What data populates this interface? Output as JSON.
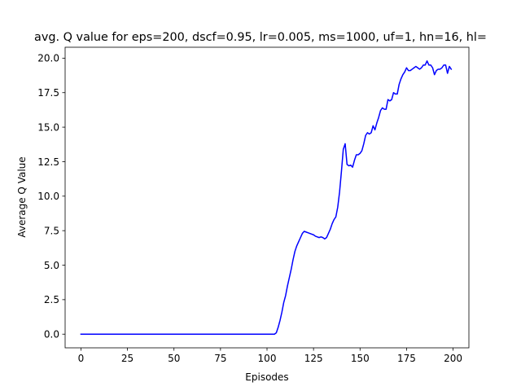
{
  "chart_data": {
    "type": "line",
    "title": "avg. Q value for eps=200, dscf=0.95, lr=0.005, ms=1000, uf=1, hn=16, hl=",
    "xlabel": "Episodes",
    "ylabel": "Average Q Value",
    "xlim": [
      -8.5,
      208.5
    ],
    "ylim": [
      -0.99,
      20.79
    ],
    "x_ticks": [
      0,
      25,
      50,
      75,
      100,
      125,
      150,
      175,
      200
    ],
    "x_tick_labels": [
      "0",
      "25",
      "50",
      "75",
      "100",
      "125",
      "150",
      "175",
      "200"
    ],
    "y_ticks": [
      0,
      2.5,
      5,
      7.5,
      10,
      12.5,
      15,
      17.5,
      20
    ],
    "y_tick_labels": [
      "0.0",
      "2.5",
      "5.0",
      "7.5",
      "10.0",
      "12.5",
      "15.0",
      "17.5",
      "20.0"
    ],
    "grid": false,
    "series": [
      {
        "color": "#0000ff",
        "x": [
          0,
          104,
          105,
          106,
          107,
          108,
          109,
          110,
          111,
          112,
          113,
          114,
          115,
          116,
          117,
          118,
          119,
          120,
          121,
          122,
          123,
          124,
          125,
          126,
          127,
          128,
          129,
          130,
          131,
          132,
          133,
          134,
          135,
          136,
          137,
          138,
          139,
          140,
          141,
          142,
          143,
          144,
          145,
          146,
          147,
          148,
          149,
          150,
          151,
          152,
          153,
          154,
          155,
          156,
          157,
          158,
          159,
          160,
          161,
          162,
          163,
          164,
          165,
          166,
          167,
          168,
          169,
          170,
          171,
          172,
          173,
          174,
          175,
          176,
          177,
          178,
          179,
          180,
          181,
          182,
          183,
          184,
          185,
          186,
          187,
          188,
          189,
          190,
          191,
          192,
          193,
          194,
          195,
          196,
          197,
          198,
          199
        ],
        "y": [
          0,
          0,
          0.1,
          0.5,
          1.0,
          1.6,
          2.3,
          2.8,
          3.5,
          4.1,
          4.7,
          5.4,
          6.0,
          6.4,
          6.7,
          7.0,
          7.3,
          7.45,
          7.4,
          7.35,
          7.3,
          7.25,
          7.2,
          7.1,
          7.05,
          7.0,
          7.05,
          7.0,
          6.9,
          7.0,
          7.3,
          7.6,
          8.0,
          8.3,
          8.5,
          9.2,
          10.3,
          11.8,
          13.4,
          13.8,
          12.3,
          12.2,
          12.25,
          12.1,
          12.6,
          13.0,
          13.0,
          13.1,
          13.3,
          13.8,
          14.4,
          14.6,
          14.5,
          14.6,
          15.1,
          14.8,
          15.3,
          15.7,
          16.2,
          16.4,
          16.3,
          16.3,
          17.0,
          16.9,
          17.0,
          17.5,
          17.4,
          17.4,
          18.1,
          18.5,
          18.8,
          19.0,
          19.3,
          19.1,
          19.1,
          19.2,
          19.3,
          19.4,
          19.3,
          19.2,
          19.3,
          19.5,
          19.5,
          19.8,
          19.5,
          19.5,
          19.3,
          18.8,
          19.1,
          19.2,
          19.2,
          19.3,
          19.5,
          19.5,
          18.9,
          19.4,
          19.2
        ]
      }
    ]
  }
}
